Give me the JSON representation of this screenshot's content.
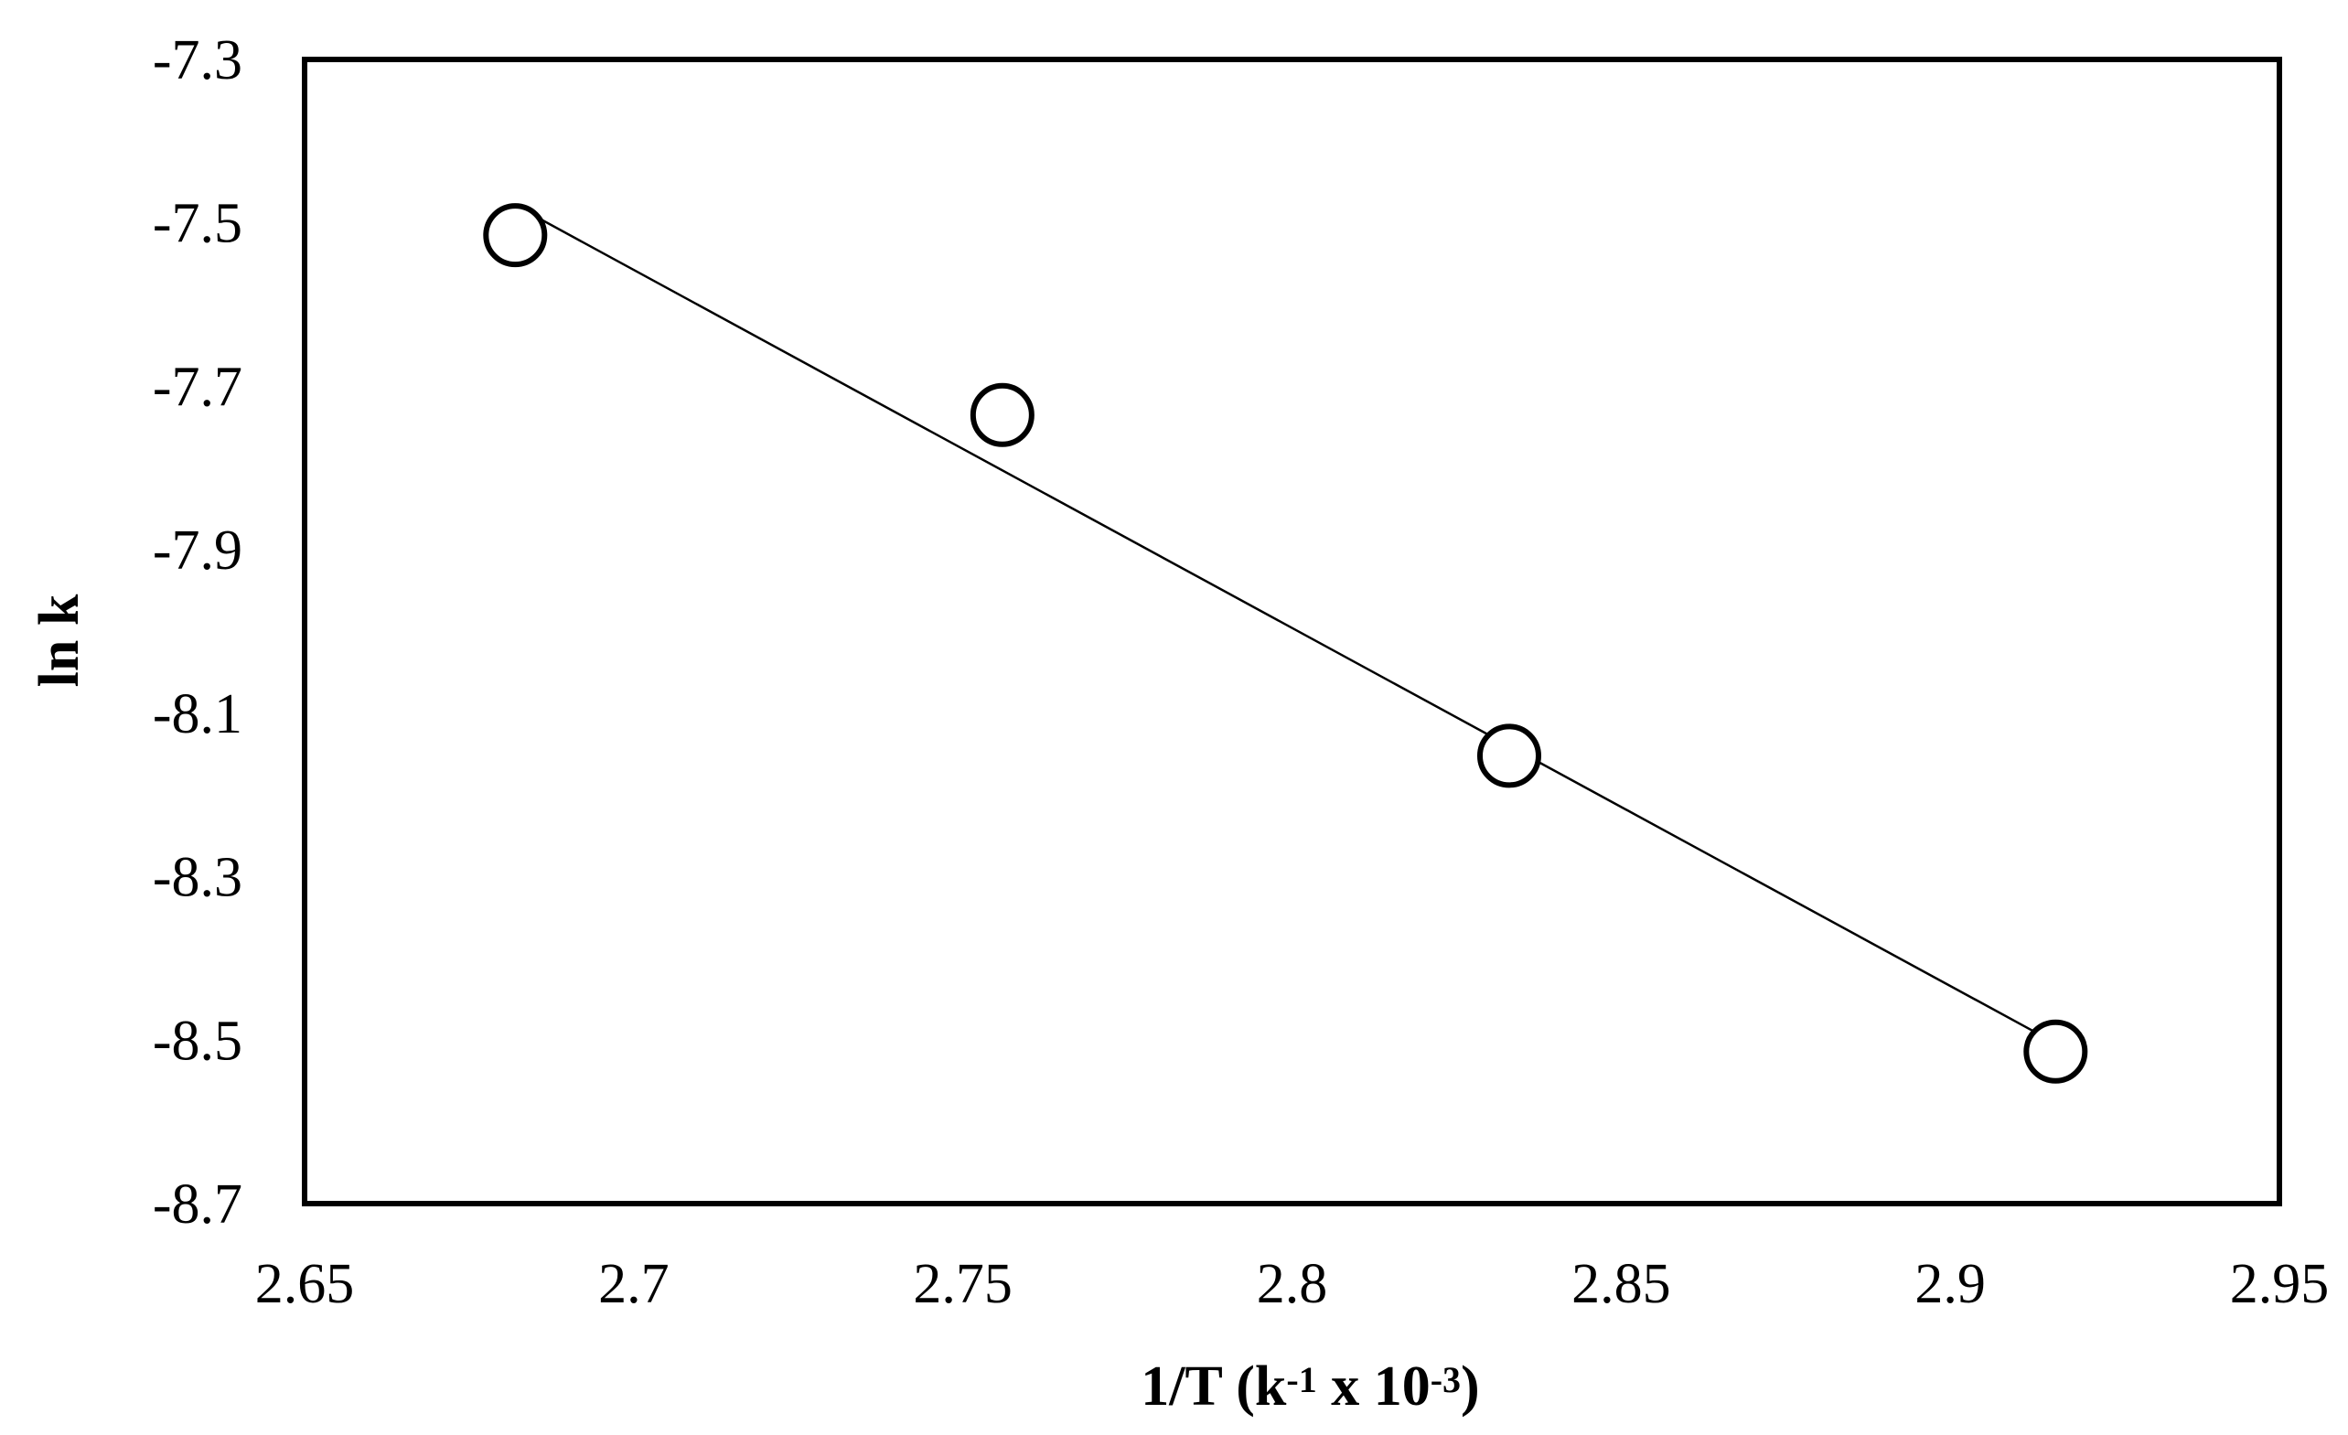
{
  "chart_data": {
    "type": "scatter",
    "title": "",
    "xlabel": "1/T (k-1 x 10-3)",
    "xlabel_parts": [
      {
        "text": "1/T (k",
        "sup": false
      },
      {
        "text": "-1",
        "sup": true
      },
      {
        "text": " x 10",
        "sup": false
      },
      {
        "text": "-3",
        "sup": true
      },
      {
        "text": ")",
        "sup": false
      }
    ],
    "ylabel": "ln k",
    "xlim": [
      2.65,
      2.95
    ],
    "ylim": [
      -8.7,
      -7.3
    ],
    "x_ticks": [
      2.65,
      2.7,
      2.75,
      2.8,
      2.85,
      2.9,
      2.95
    ],
    "x_tick_labels": [
      "2.65",
      "2.7",
      "2.75",
      "2.8",
      "2.85",
      "2.9",
      "2.95"
    ],
    "y_ticks": [
      -7.3,
      -7.5,
      -7.7,
      -7.9,
      -8.1,
      -8.3,
      -8.5,
      -8.7
    ],
    "y_tick_labels": [
      "-7.3",
      "-7.5",
      "-7.7",
      "-7.9",
      "-8.1",
      "-8.3",
      "-8.5",
      "-8.7"
    ],
    "grid": false,
    "legend": "none",
    "series": [
      {
        "marker": "open-circle",
        "x": [
          2.682,
          2.756,
          2.833,
          2.916
        ],
        "y": [
          -7.515,
          -7.735,
          -8.152,
          -8.514
        ]
      }
    ],
    "trendline": {
      "type": "linear",
      "x": [
        2.683,
        2.914
      ],
      "y": [
        -7.483,
        -8.495
      ]
    },
    "colors": {
      "marker_stroke": "#000000",
      "marker_fill": "#ffffff",
      "line": "#000000",
      "frame": "#000000"
    }
  }
}
